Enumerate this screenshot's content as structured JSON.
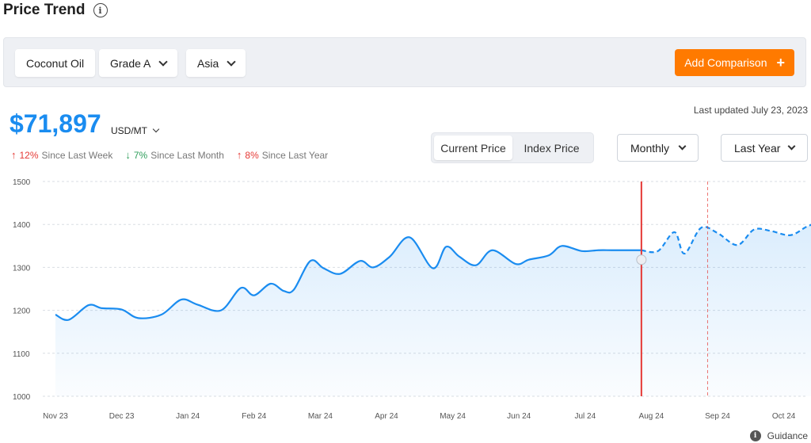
{
  "header": {
    "title": "Price Trend",
    "info_icon": "info-icon"
  },
  "filters": {
    "commodity": "Coconut Oil",
    "grade": "Grade A",
    "region": "Asia",
    "add_comparison": "Add Comparison",
    "add_icon": "plus-icon"
  },
  "price": {
    "value": "$71,897",
    "unit": "USD/MT",
    "last_updated": "Last updated July 23, 2023",
    "changes": [
      {
        "pct": "12%",
        "label": "Since Last Week",
        "direction": "up",
        "color": "#e53935"
      },
      {
        "pct": "7%",
        "label": "Since Last Month",
        "direction": "down",
        "color": "#2e9e5b"
      },
      {
        "pct": "8%",
        "label": "Since Last Year",
        "direction": "up",
        "color": "#e53935"
      }
    ]
  },
  "view_toggle": {
    "options": [
      "Current Price",
      "Index Price"
    ],
    "selected": "Current Price"
  },
  "frequency": {
    "selected": "Monthly"
  },
  "range": {
    "selected": "Last Year"
  },
  "guidance": {
    "label": "Guidance",
    "icon": "info-icon"
  },
  "colors": {
    "accent": "#1a8cf0",
    "brand": "#ff7a00",
    "marker": "#e53935"
  },
  "chart_data": {
    "type": "line",
    "x_categories": [
      "Nov 23",
      "Dec 23",
      "Jan 24",
      "Feb 24",
      "Mar 24",
      "Apr 24",
      "May 24",
      "Jun 24",
      "Jul 24",
      "Aug 24",
      "Sep 24",
      "Oct 24"
    ],
    "y_ticks": [
      1000,
      1100,
      1200,
      1300,
      1400,
      1500
    ],
    "ylim": [
      1000,
      1500
    ],
    "grid": true,
    "series": [
      {
        "style": "solid",
        "x": [
          0,
          0.2,
          0.5,
          0.7,
          1.0,
          1.25,
          1.6,
          1.9,
          2.15,
          2.5,
          2.8,
          3.0,
          3.25,
          3.45,
          3.6,
          3.85,
          4.05,
          4.3,
          4.6,
          4.8,
          5.05,
          5.35,
          5.7,
          5.9,
          6.1,
          6.35,
          6.6,
          6.95,
          7.15,
          7.45,
          7.65,
          7.95,
          8.2,
          8.4,
          8.65,
          8.85
        ],
        "y": [
          1190,
          1178,
          1212,
          1205,
          1202,
          1182,
          1190,
          1225,
          1213,
          1200,
          1252,
          1235,
          1262,
          1245,
          1248,
          1315,
          1298,
          1285,
          1315,
          1300,
          1325,
          1370,
          1298,
          1348,
          1325,
          1305,
          1340,
          1308,
          1318,
          1328,
          1350,
          1338,
          1340,
          1340,
          1340,
          1340
        ]
      },
      {
        "style": "dashed",
        "x": [
          8.85,
          9.1,
          9.35,
          9.5,
          9.75,
          10.0,
          10.3,
          10.55,
          10.8,
          11.1,
          11.35,
          11.6
        ],
        "y": [
          1340,
          1338,
          1382,
          1332,
          1392,
          1380,
          1352,
          1388,
          1385,
          1375,
          1395,
          1410
        ]
      }
    ],
    "marker_x": 8.85,
    "forecast_line_x": 9.85
  }
}
